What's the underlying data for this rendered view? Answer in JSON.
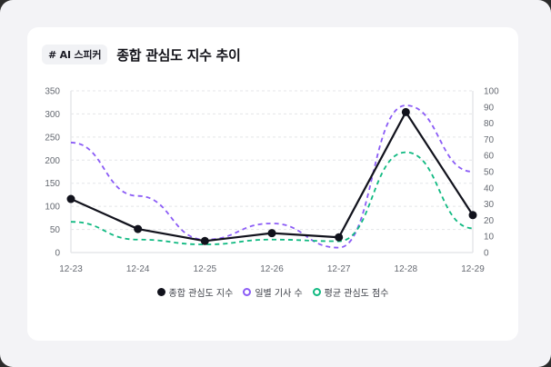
{
  "header": {
    "tag": "# AI 스피커",
    "title": "종합 관심도 지수 추이"
  },
  "legend": [
    {
      "label": "종합 관심도 지수",
      "color": "#11121c",
      "style": "filled"
    },
    {
      "label": "일별 기사 수",
      "color": "#8b5cf6",
      "style": "hollow"
    },
    {
      "label": "평균 관심도 점수",
      "color": "#10b981",
      "style": "hollow"
    }
  ],
  "chart_data": {
    "type": "line",
    "title": "종합 관심도 지수 추이",
    "categories": [
      "12-23",
      "12-24",
      "12-25",
      "12-26",
      "12-27",
      "12-28",
      "12-29"
    ],
    "series": [
      {
        "name": "종합 관심도 지수",
        "axis": "left",
        "color": "#11121c",
        "style": "solid",
        "markers": true,
        "values": [
          116,
          51,
          25,
          42,
          33,
          304,
          81
        ]
      },
      {
        "name": "일별 기사 수",
        "axis": "right",
        "color": "#8b5cf6",
        "style": "dashed",
        "markers": false,
        "values": [
          68,
          35,
          8,
          18,
          3,
          91,
          50
        ]
      },
      {
        "name": "평균 관심도 점수",
        "axis": "right",
        "color": "#10b981",
        "style": "dashed",
        "markers": false,
        "values": [
          19,
          8,
          5,
          8,
          7,
          62,
          15
        ]
      }
    ],
    "y_left": {
      "ticks": [
        0,
        50,
        100,
        150,
        200,
        250,
        300,
        350
      ],
      "range": [
        0,
        350
      ]
    },
    "y_right": {
      "ticks": [
        0,
        10,
        20,
        30,
        40,
        50,
        60,
        70,
        80,
        90,
        100
      ],
      "range": [
        0,
        100
      ]
    },
    "xlabel": "",
    "ylabel": "",
    "grid": true,
    "legend_position": "bottom"
  }
}
